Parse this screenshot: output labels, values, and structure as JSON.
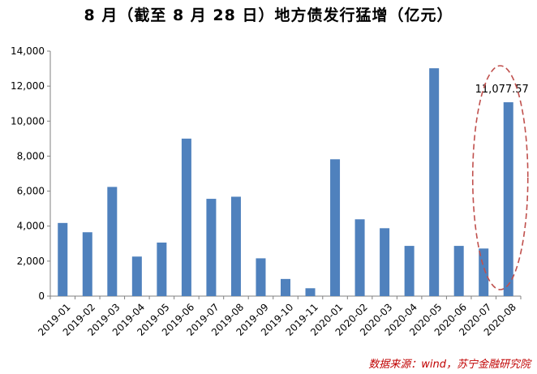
{
  "chart_data": {
    "type": "bar",
    "title": "8 月（截至 8 月 28 日）地方债发行猛增（亿元）",
    "categories": [
      "2019-01",
      "2019-02",
      "2019-03",
      "2019-04",
      "2019-05",
      "2019-06",
      "2019-07",
      "2019-08",
      "2019-09",
      "2019-10",
      "2019-11",
      "2020-01",
      "2020-02",
      "2020-03",
      "2020-04",
      "2020-05",
      "2020-06",
      "2020-07",
      "2020-08"
    ],
    "values": [
      4180,
      3650,
      6240,
      2260,
      3060,
      9000,
      5560,
      5680,
      2160,
      980,
      450,
      7820,
      4390,
      3880,
      2870,
      13020,
      2870,
      2720,
      11077.57
    ],
    "ylim": [
      0,
      14000
    ],
    "yticks": [
      0,
      2000,
      4000,
      6000,
      8000,
      10000,
      12000,
      14000
    ],
    "ytick_labels": [
      "0",
      "2,000",
      "4,000",
      "6,000",
      "8,000",
      "10,000",
      "12,000",
      "14,000"
    ],
    "data_labels": [
      {
        "index": 18,
        "text": "11,077.57"
      }
    ],
    "bar_color": "#4f81bd",
    "highlight_color": "#c0504d",
    "grid": false,
    "xlabel": "",
    "ylabel": ""
  },
  "source_note": "数据来源：wind，苏宁金融研究院"
}
